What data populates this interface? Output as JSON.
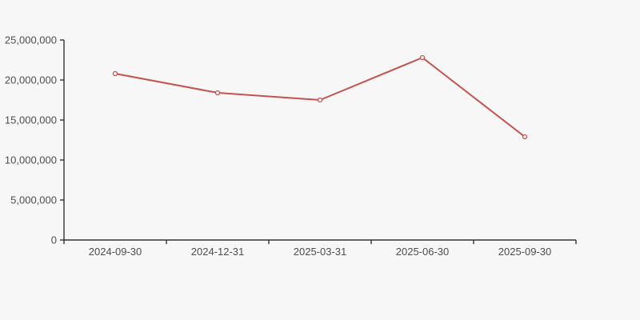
{
  "page": {
    "background": "#f7f7f7"
  },
  "chart_data": {
    "type": "line",
    "title": "",
    "categories": [
      "2024-09-30",
      "2024-12-31",
      "2025-03-31",
      "2025-06-30",
      "2025-09-30"
    ],
    "series": [
      {
        "name": "",
        "values": [
          20800000,
          18400000,
          17500000,
          22800000,
          12900000
        ],
        "color": "#c4524d"
      }
    ],
    "xlabel": "",
    "ylabel": "",
    "ylim": [
      0,
      25000000
    ],
    "y_ticks": {
      "values": [
        0,
        5000000,
        10000000,
        15000000,
        20000000,
        25000000
      ],
      "labels": [
        "0",
        "5,000,000",
        "10,000,000",
        "15,000,000",
        "20,000,000",
        "25,000,000"
      ]
    },
    "grid": false,
    "legend_position": "none",
    "marker": {
      "shape": "hollow-circle",
      "fill": "#fdfdfd",
      "radius": 2.5
    },
    "colors": {
      "line": "#c4524d",
      "axis": "#333333",
      "tick_label": "#4d4d4d",
      "background": "#f7f7f7"
    }
  }
}
